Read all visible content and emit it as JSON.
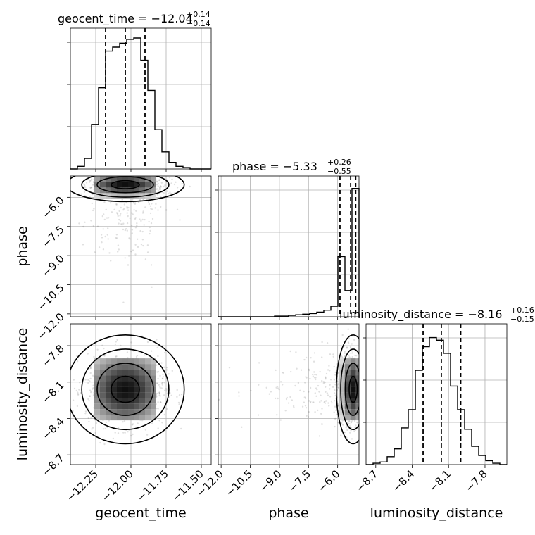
{
  "chart_data": {
    "type": "corner",
    "parameters": [
      {
        "name": "geocent_time",
        "title": "geocent_time = −12.04",
        "sup": "+0.14",
        "sub": "−0.14",
        "median": -12.04,
        "lower_q": -12.18,
        "upper_q": -11.9,
        "range": [
          -12.43,
          -11.43
        ],
        "ticks": [
          -12.25,
          -12.0,
          -11.75,
          -11.5
        ],
        "tick_labels": [
          "−12.25",
          "−12.00",
          "−11.75",
          "−11.50"
        ],
        "hist_bins": [
          0.0,
          0.02,
          0.08,
          0.34,
          0.62,
          0.9,
          0.93,
          0.96,
          0.99,
          1.0,
          0.83,
          0.6,
          0.3,
          0.13,
          0.05,
          0.02,
          0.01,
          0.0,
          0.0,
          0.0
        ]
      },
      {
        "name": "phase",
        "title": "phase = −5.33",
        "sup": "+0.26",
        "sub": "−0.55",
        "median": -5.33,
        "lower_q": -5.88,
        "upper_q": -5.07,
        "range": [
          -12.15,
          -4.9
        ],
        "ticks": [
          -12.0,
          -10.5,
          -9.0,
          -7.5,
          -6.0
        ],
        "tick_labels": [
          "−12.0",
          "−10.5",
          "−9.0",
          "−7.5",
          "−6.0"
        ],
        "hist_bins": [
          0.0,
          0.0,
          0.0,
          0.0,
          0.0,
          0.0,
          0.0,
          0.0,
          0.005,
          0.005,
          0.01,
          0.015,
          0.02,
          0.025,
          0.035,
          0.05,
          0.08,
          0.46,
          0.2,
          0.98
        ]
      },
      {
        "name": "luminosity_distance",
        "title": "luminosity_distance = −8.16",
        "sup": "+0.16",
        "sub": "−0.15",
        "median": -8.16,
        "lower_q": -8.31,
        "upper_q": -8.0,
        "range": [
          -8.78,
          -7.62
        ],
        "ticks": [
          -8.7,
          -8.4,
          -8.1,
          -7.8
        ],
        "tick_labels": [
          "−8.7",
          "−8.4",
          "−8.1",
          "−7.8"
        ],
        "hist_bins": [
          0.0,
          0.01,
          0.02,
          0.06,
          0.12,
          0.28,
          0.42,
          0.72,
          0.9,
          0.97,
          0.95,
          0.85,
          0.6,
          0.42,
          0.27,
          0.14,
          0.07,
          0.03,
          0.01,
          0.0
        ]
      }
    ],
    "yticks_phase": [
      -6.0,
      -7.5,
      -9.0,
      -10.5,
      -12.0
    ],
    "yticks_phase_labels": [
      "−6.0",
      "−7.5",
      "−9.0",
      "−10.5",
      "−12.0"
    ],
    "yticks_lumdist": [
      -7.8,
      -8.1,
      -8.4,
      -8.7
    ],
    "yticks_lumdist_labels": [
      "−7.8",
      "−8.1",
      "−8.4",
      "−8.7"
    ],
    "grid": true
  }
}
